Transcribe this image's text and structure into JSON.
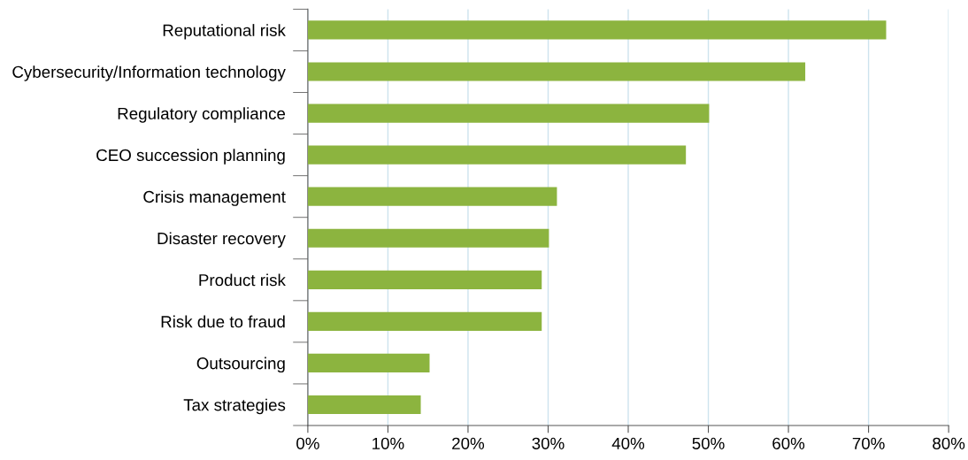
{
  "chart_data": {
    "type": "bar",
    "orientation": "horizontal",
    "categories": [
      "Reputational risk",
      "Cybersecurity/Information technology",
      "Regulatory compliance",
      "CEO succession planning",
      "Crisis management",
      "Disaster recovery",
      "Product risk",
      "Risk due to fraud",
      "Outsourcing",
      "Tax strategies"
    ],
    "values": [
      72.2,
      62.1,
      50.1,
      47.2,
      31.1,
      30.1,
      29.2,
      29.2,
      15.2,
      14.1
    ],
    "color": "#8cb43f",
    "xlim": [
      0,
      80
    ],
    "xticks": [
      {
        "value": 0,
        "label": "0%"
      },
      {
        "value": 10,
        "label": "10%"
      },
      {
        "value": 20,
        "label": "20%"
      },
      {
        "value": 30,
        "label": "30%"
      },
      {
        "value": 40,
        "label": "40%"
      },
      {
        "value": 50,
        "label": "50%"
      },
      {
        "value": 60,
        "label": "60%"
      },
      {
        "value": 70,
        "label": "70%"
      },
      {
        "value": 80,
        "label": "80%"
      }
    ],
    "grid": "x"
  }
}
